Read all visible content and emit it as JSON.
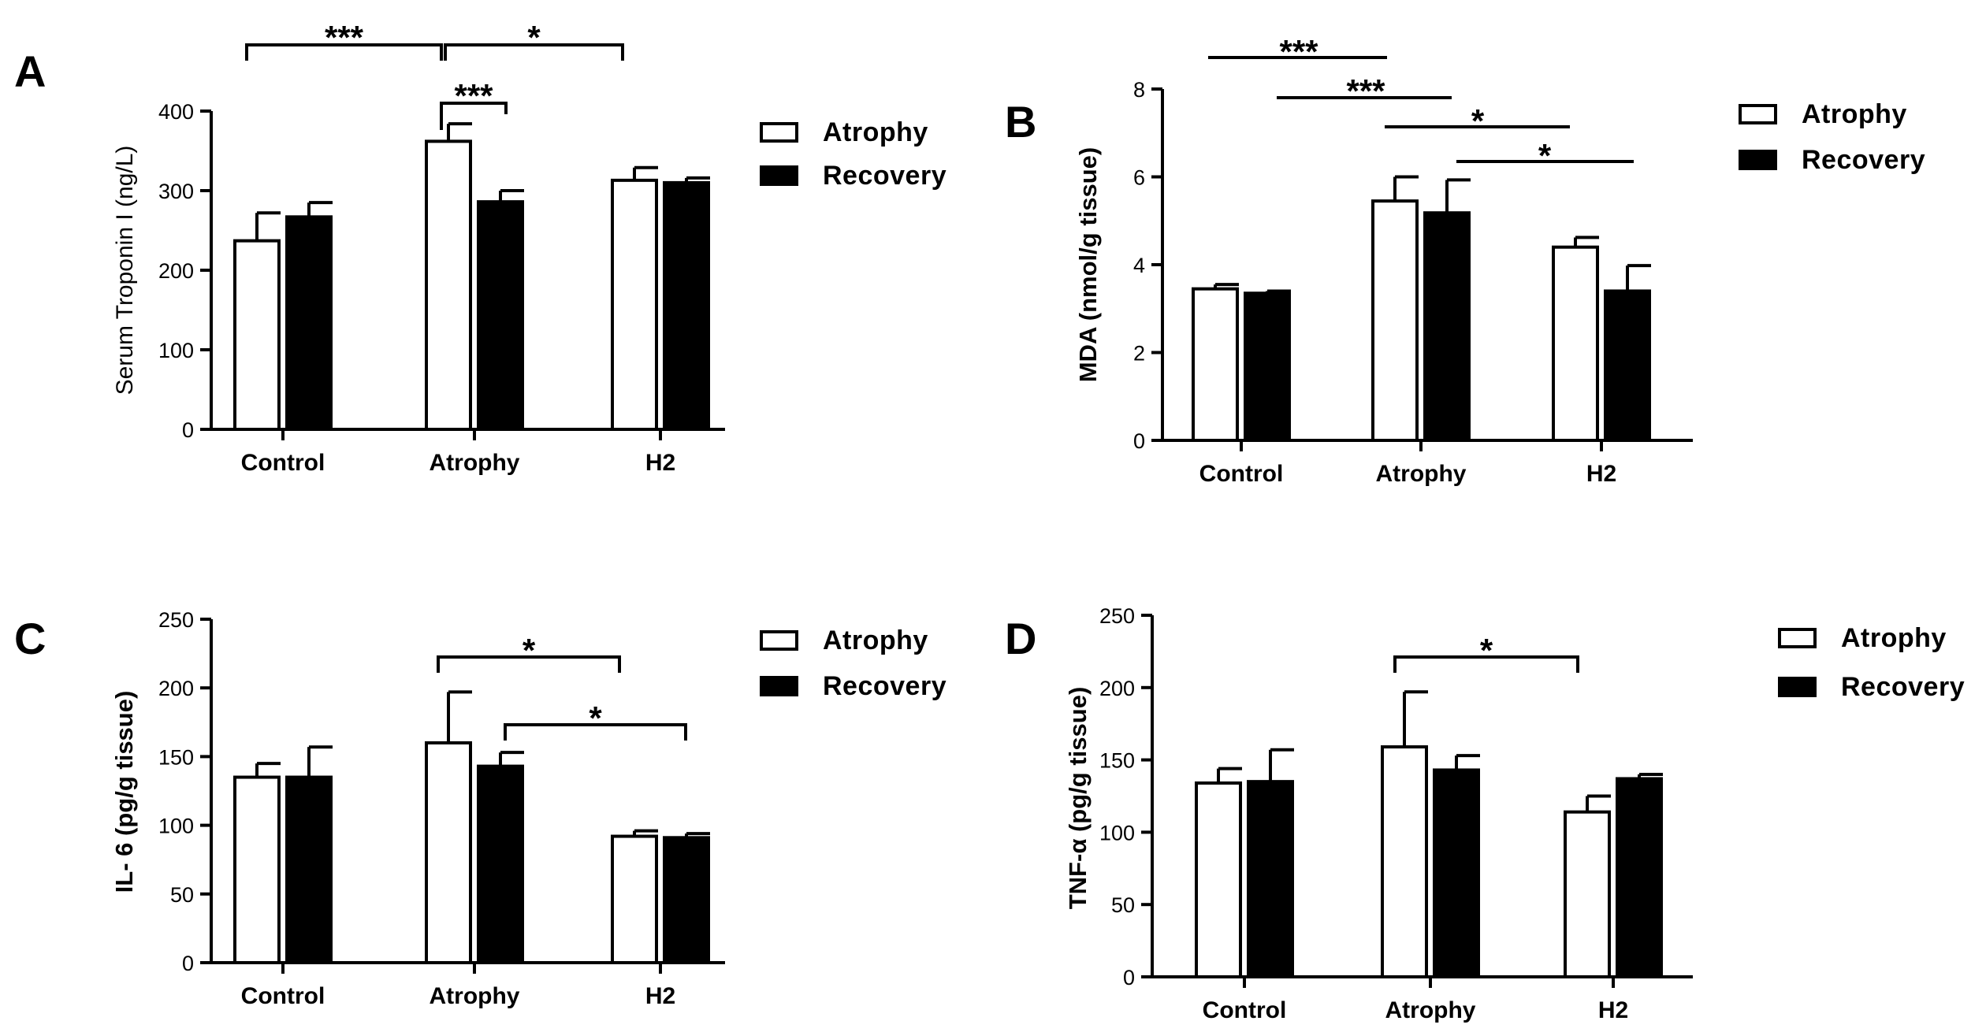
{
  "chart_data": [
    {
      "panel": "A",
      "type": "bar",
      "ylabel": "Serum Troponin I (ng/L)",
      "ylim": [
        0,
        400
      ],
      "yticks": [
        0,
        100,
        200,
        300,
        400
      ],
      "categories": [
        "Control",
        "Atrophy",
        "H2"
      ],
      "series": [
        {
          "name": "Atrophy",
          "values": [
            237,
            362,
            313
          ],
          "errors": [
            35,
            22,
            16
          ]
        },
        {
          "name": "Recovery",
          "values": [
            267,
            286,
            310
          ],
          "errors": [
            18,
            14,
            6
          ]
        }
      ],
      "significance": [
        {
          "from": "Control-Atrophy",
          "to": "Atrophy-Atrophy",
          "label": "***"
        },
        {
          "from": "Atrophy-Atrophy",
          "to": "H2-Atrophy",
          "label": "*"
        },
        {
          "from": "Atrophy-Atrophy",
          "to": "Atrophy-Recovery",
          "label": "***"
        }
      ]
    },
    {
      "panel": "B",
      "type": "bar",
      "ylabel": "MDA (nmol/g tissue)",
      "ylim": [
        0,
        8
      ],
      "yticks": [
        0,
        2,
        4,
        6,
        8
      ],
      "categories": [
        "Control",
        "Atrophy",
        "H2"
      ],
      "series": [
        {
          "name": "Atrophy",
          "values": [
            3.45,
            5.45,
            4.4
          ],
          "errors": [
            0.1,
            0.55,
            0.22
          ]
        },
        {
          "name": "Recovery",
          "values": [
            3.35,
            5.18,
            3.4
          ],
          "errors": [
            0.05,
            0.75,
            0.58
          ]
        }
      ],
      "significance": [
        {
          "from": "Control-Atrophy",
          "to": "Atrophy-Atrophy",
          "label": "***"
        },
        {
          "from": "Control-Recovery",
          "to": "Atrophy-Recovery",
          "label": "***"
        },
        {
          "from": "Atrophy-Atrophy",
          "to": "H2-Atrophy",
          "label": "*"
        },
        {
          "from": "Atrophy-Recovery",
          "to": "H2-Recovery",
          "label": "*"
        }
      ]
    },
    {
      "panel": "C",
      "type": "bar",
      "ylabel": "IL- 6 (pg/g tissue)",
      "ylim": [
        0,
        250
      ],
      "yticks": [
        0,
        50,
        100,
        150,
        200,
        250
      ],
      "categories": [
        "Control",
        "Atrophy",
        "H2"
      ],
      "series": [
        {
          "name": "Atrophy",
          "values": [
            135,
            160,
            92
          ],
          "errors": [
            10,
            37,
            4
          ]
        },
        {
          "name": "Recovery",
          "values": [
            135,
            143,
            91
          ],
          "errors": [
            22,
            10,
            3
          ]
        }
      ],
      "significance": [
        {
          "from": "Atrophy-Atrophy",
          "to": "H2-Atrophy",
          "label": "*"
        },
        {
          "from": "Atrophy-Recovery",
          "to": "H2-Recovery",
          "label": "*"
        }
      ]
    },
    {
      "panel": "D",
      "type": "bar",
      "ylabel": "TNF-α (pg/g tissue)",
      "ylim": [
        0,
        250
      ],
      "yticks": [
        0,
        50,
        100,
        150,
        200,
        250
      ],
      "categories": [
        "Control",
        "Atrophy",
        "H2"
      ],
      "series": [
        {
          "name": "Atrophy",
          "values": [
            134,
            159,
            114
          ],
          "errors": [
            10,
            38,
            11
          ]
        },
        {
          "name": "Recovery",
          "values": [
            135,
            143,
            137
          ],
          "errors": [
            22,
            10,
            3
          ]
        }
      ],
      "significance": [
        {
          "from": "Atrophy-Atrophy",
          "to": "H2-Atrophy",
          "label": "*"
        }
      ]
    }
  ],
  "legend": {
    "items": [
      "Atrophy",
      "Recovery"
    ]
  },
  "colors": {
    "atrophy_fill": "#ffffff",
    "recovery_fill": "#000000",
    "stroke": "#000000"
  }
}
